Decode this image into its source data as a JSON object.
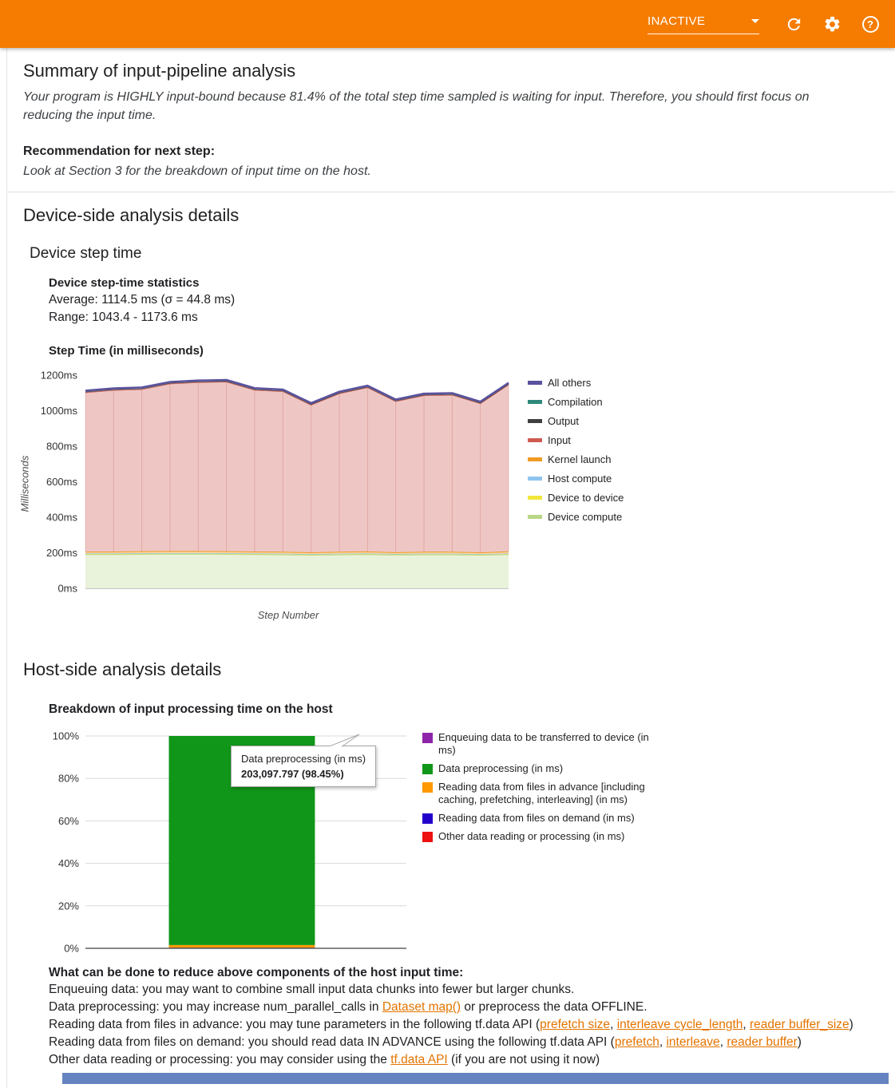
{
  "colors": {
    "header_bg": "#f57c00",
    "link": "#e37400",
    "footer_bar": "#6583c1"
  },
  "header": {
    "run_selector": "INACTIVE",
    "help_glyph": "?",
    "icons": [
      "refresh-icon",
      "gear-icon",
      "help-icon",
      "chevron-down-icon"
    ]
  },
  "summary": {
    "title": "Summary of input-pipeline analysis",
    "conclusion": "Your program is HIGHLY input-bound because 81.4% of the total step time sampled is waiting for input. Therefore, you should first focus on reducing the input time.",
    "recommendation_label": "Recommendation for next step:",
    "recommendation": "Look at Section 3 for the breakdown of input time on the host."
  },
  "device_section": {
    "title": "Device-side analysis details",
    "subtitle": "Device step time",
    "stats_heading": "Device step-time statistics",
    "average": "Average: 1114.5 ms (σ = 44.8 ms)",
    "range": "Range: 1043.4 - 1173.6 ms",
    "chart_heading": "Step Time (in milliseconds)"
  },
  "host_section": {
    "title": "Host-side analysis details",
    "chart_heading": "Breakdown of input processing time on the host",
    "tooltip": {
      "label": "Data preprocessing (in ms)",
      "value": "203,097.797 (98.45%)"
    }
  },
  "advice": {
    "heading": "What can be done to reduce above components of the host input time:",
    "lines": [
      [
        {
          "t": "Enqueuing data: you may want to combine small input data chunks into fewer but larger chunks."
        }
      ],
      [
        {
          "t": "Data preprocessing: you may increase num_parallel_calls in "
        },
        {
          "t": "Dataset map()",
          "link": true
        },
        {
          "t": " or preprocess the data OFFLINE."
        }
      ],
      [
        {
          "t": "Reading data from files in advance: you may tune parameters in the following tf.data API ("
        },
        {
          "t": "prefetch size",
          "link": true
        },
        {
          "t": ", "
        },
        {
          "t": "interleave cycle_length",
          "link": true
        },
        {
          "t": ", "
        },
        {
          "t": "reader buffer_size",
          "link": true
        },
        {
          "t": ")"
        }
      ],
      [
        {
          "t": "Reading data from files on demand: you should read data IN ADVANCE using the following tf.data API ("
        },
        {
          "t": "prefetch",
          "link": true
        },
        {
          "t": ", "
        },
        {
          "t": "interleave",
          "link": true
        },
        {
          "t": ", "
        },
        {
          "t": "reader buffer",
          "link": true
        },
        {
          "t": ")"
        }
      ],
      [
        {
          "t": "Other data reading or processing: you may consider using the "
        },
        {
          "t": "tf.data API",
          "link": true
        },
        {
          "t": " (if you are not using it now)"
        }
      ]
    ]
  },
  "chart_data": [
    {
      "id": "device_step_time",
      "type": "area",
      "title": "Step Time (in milliseconds)",
      "xlabel": "Step Number",
      "ylabel": "Milliseconds",
      "ylim": [
        0,
        1200
      ],
      "yticks": [
        0,
        200,
        400,
        600,
        800,
        1000,
        1200
      ],
      "ytick_suffix": "ms",
      "grid": false,
      "legend_position": "right",
      "x": [
        1,
        2,
        3,
        4,
        5,
        6,
        7,
        8,
        9,
        10,
        11,
        12,
        13,
        14,
        15,
        16
      ],
      "series": [
        {
          "name": "Device compute",
          "color": "#b9d787",
          "fill": "#e9f2da",
          "stroke_width": 1.5,
          "values": [
            191,
            191,
            192,
            193,
            193,
            192,
            191,
            190,
            187,
            190,
            191,
            188,
            190,
            190,
            187,
            191
          ]
        },
        {
          "name": "Device to device",
          "color": "#f1e73c",
          "fill": "#f9f5ae",
          "stroke_width": 1.5,
          "values": [
            3,
            3,
            3,
            3,
            3,
            3,
            3,
            3,
            3,
            3,
            3,
            3,
            3,
            3,
            3,
            3
          ]
        },
        {
          "name": "Host compute",
          "color": "#8fc5ef",
          "fill": "#d8eafb",
          "stroke_width": 1.5,
          "values": [
            2,
            2,
            2,
            2,
            2,
            2,
            2,
            2,
            2,
            2,
            2,
            2,
            2,
            2,
            2,
            2
          ]
        },
        {
          "name": "Kernel launch",
          "color": "#f09b23",
          "fill": "#fbd9a6",
          "stroke_width": 2,
          "values": [
            11,
            11,
            12,
            12,
            12,
            12,
            11,
            11,
            10,
            11,
            12,
            10,
            11,
            11,
            10,
            12
          ]
        },
        {
          "name": "Input",
          "color": "#cf5b51",
          "fill": "#eec7c5",
          "stroke_width": 1.5,
          "point_lines": true,
          "point_line_color": "rgba(198,94,86,0.30)",
          "values": [
            896,
            909,
            912,
            942,
            950,
            954,
            910,
            903,
            831,
            891,
            923,
            850,
            880,
            883,
            839,
            939
          ]
        },
        {
          "name": "Output",
          "color": "#3f3f3f",
          "fill": "#c9c9c9",
          "stroke_width": 1.5,
          "values": [
            4,
            4,
            4,
            4,
            4,
            4,
            4,
            4,
            4,
            4,
            4,
            4,
            4,
            4,
            4,
            4
          ]
        },
        {
          "name": "Compilation",
          "color": "#2f897a",
          "fill": "#a9d8cb",
          "stroke_width": 1.5,
          "values": [
            0,
            0,
            0,
            0,
            0,
            0,
            0,
            0,
            0,
            0,
            0,
            0,
            0,
            0,
            0,
            0
          ]
        },
        {
          "name": "All others",
          "color": "#5a529e",
          "fill": "#c9c5e4",
          "stroke_width": 2.5,
          "values": [
            6,
            6,
            6,
            6,
            6,
            6,
            6,
            6,
            6,
            6,
            6,
            6,
            6,
            6,
            6,
            6
          ]
        }
      ],
      "legend": [
        {
          "name": "All others",
          "color": "#5a529e"
        },
        {
          "name": "Compilation",
          "color": "#2f897a"
        },
        {
          "name": "Output",
          "color": "#3f3f3f"
        },
        {
          "name": "Input",
          "color": "#cf5b51"
        },
        {
          "name": "Kernel launch",
          "color": "#f09b23"
        },
        {
          "name": "Host compute",
          "color": "#8fc5ef"
        },
        {
          "name": "Device to device",
          "color": "#f1e73c"
        },
        {
          "name": "Device compute",
          "color": "#b9d787"
        }
      ]
    },
    {
      "id": "host_input_breakdown",
      "type": "bar",
      "stacked": true,
      "title": "Breakdown of input processing time on the host",
      "ylim": [
        0,
        100
      ],
      "yticks": [
        0,
        20,
        40,
        60,
        80,
        100
      ],
      "ytick_suffix": "%",
      "grid": true,
      "legend_position": "right",
      "segments_bottom_up": [
        {
          "name": "Other data reading or processing (in ms)",
          "color": "#ee1111",
          "percent": 0.2
        },
        {
          "name": "Reading data from files on demand (in ms)",
          "color": "#2200cc",
          "percent": 0.1
        },
        {
          "name": "Reading data from files in advance [including caching, prefetching, interleaving] (in ms)",
          "color": "#ff9900",
          "percent": 1.25
        },
        {
          "name": "Data preprocessing (in ms)",
          "color": "#109618",
          "percent": 98.45
        },
        {
          "name": "Enqueuing data to be transferred to device (in ms)",
          "color": "#8e24aa",
          "percent": 0.0
        }
      ],
      "highlight": {
        "label": "Data preprocessing (in ms)",
        "value_ms": "203,097.797",
        "percent": "98.45%"
      },
      "legend": [
        {
          "name": "Enqueuing data to be transferred to device (in ms)",
          "color": "#8e24aa"
        },
        {
          "name": "Data preprocessing (in ms)",
          "color": "#109618"
        },
        {
          "name": "Reading data from files in advance [including caching, prefetching, interleaving] (in ms)",
          "color": "#ff9900"
        },
        {
          "name": "Reading data from files on demand (in ms)",
          "color": "#2200cc"
        },
        {
          "name": "Other data reading or processing (in ms)",
          "color": "#ee1111"
        }
      ]
    }
  ]
}
